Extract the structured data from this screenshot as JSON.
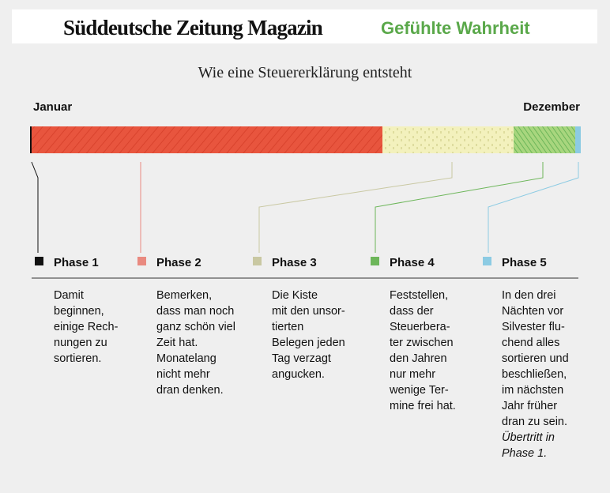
{
  "header": {
    "logo": "Süddeutsche Zeitung Magazin",
    "section": "Gefühlte Wahrheit"
  },
  "title": "Wie eine Steuererklärung entsteht",
  "start_label": "Januar",
  "end_label": "Dezember",
  "phases": [
    {
      "name": "Phase 1",
      "color": "#111111",
      "lines": [
        "Damit",
        "beginnen,",
        "einige Rech-",
        "nungen zu",
        "sortieren."
      ]
    },
    {
      "name": "Phase 2",
      "color": "#e98a80",
      "lines": [
        "Bemerken,",
        "dass man noch",
        "ganz schön viel",
        "Zeit hat.",
        "Monatelang",
        "nicht mehr",
        "dran denken."
      ]
    },
    {
      "name": "Phase 3",
      "color": "#c9c8a2",
      "lines": [
        "Die Kiste",
        "mit den unsor-",
        "tierten",
        "Belegen jeden",
        "Tag verzagt",
        "angucken."
      ]
    },
    {
      "name": "Phase 4",
      "color": "#6db65a",
      "lines": [
        "Feststellen,",
        "dass der",
        "Steuerbera-",
        "ter zwischen",
        "den Jahren",
        "nur mehr",
        "wenige Ter-",
        "mine frei hat."
      ]
    },
    {
      "name": "Phase 5",
      "color": "#8ccbe3",
      "lines": [
        "In den drei",
        "Nächten vor",
        "Silvester flu-",
        "chend alles",
        "sortieren und",
        "beschließen,",
        "im nächsten",
        "Jahr früher",
        "dran zu sein."
      ],
      "note": [
        "Übertritt in",
        "Phase 1."
      ]
    }
  ]
}
